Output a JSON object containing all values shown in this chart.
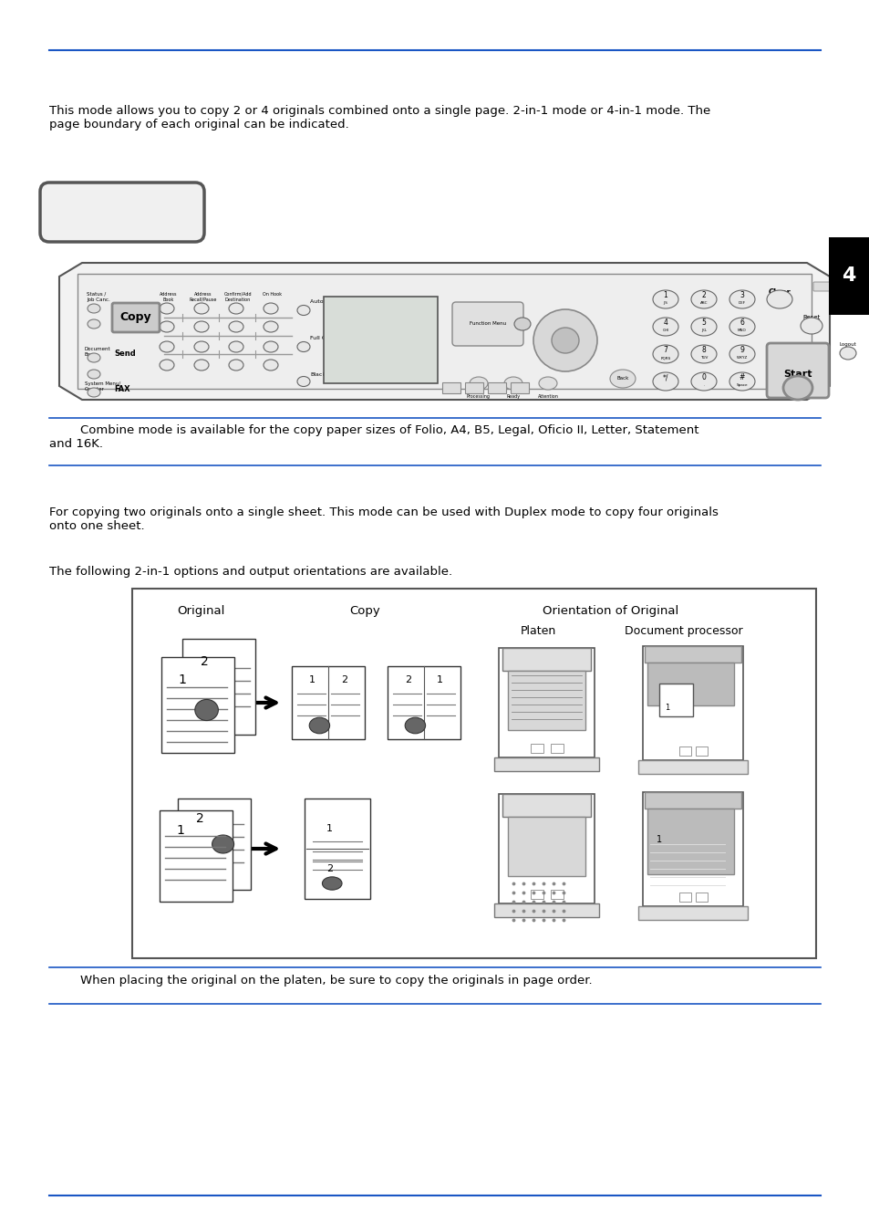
{
  "page_bg": "#ffffff",
  "blue_line_color": "#1a56c4",
  "text_color": "#000000",
  "intro_text": "This mode allows you to copy 2 or 4 originals combined onto a single page. 2-in-1 mode or 4-in-1 mode. The\npage boundary of each original can be indicated.",
  "note1_text": "        Combine mode is available for the copy paper sizes of Folio, A4, B5, Legal, Oficio II, Letter, Statement\nand 16K.",
  "para2_text": "For copying two originals onto a single sheet. This mode can be used with Duplex mode to copy four originals\nonto one sheet.",
  "para3_text": "The following 2-in-1 options and output orientations are available.",
  "note2_text": "        When placing the original on the platen, be sure to copy the originals in page order.",
  "diagram_title_original": "Original",
  "diagram_title_copy": "Copy",
  "diagram_title_orientation": "Orientation of Original",
  "diagram_subtitle_platen": "Platen",
  "diagram_subtitle_docproc": "Document processor",
  "tab_text": "4"
}
